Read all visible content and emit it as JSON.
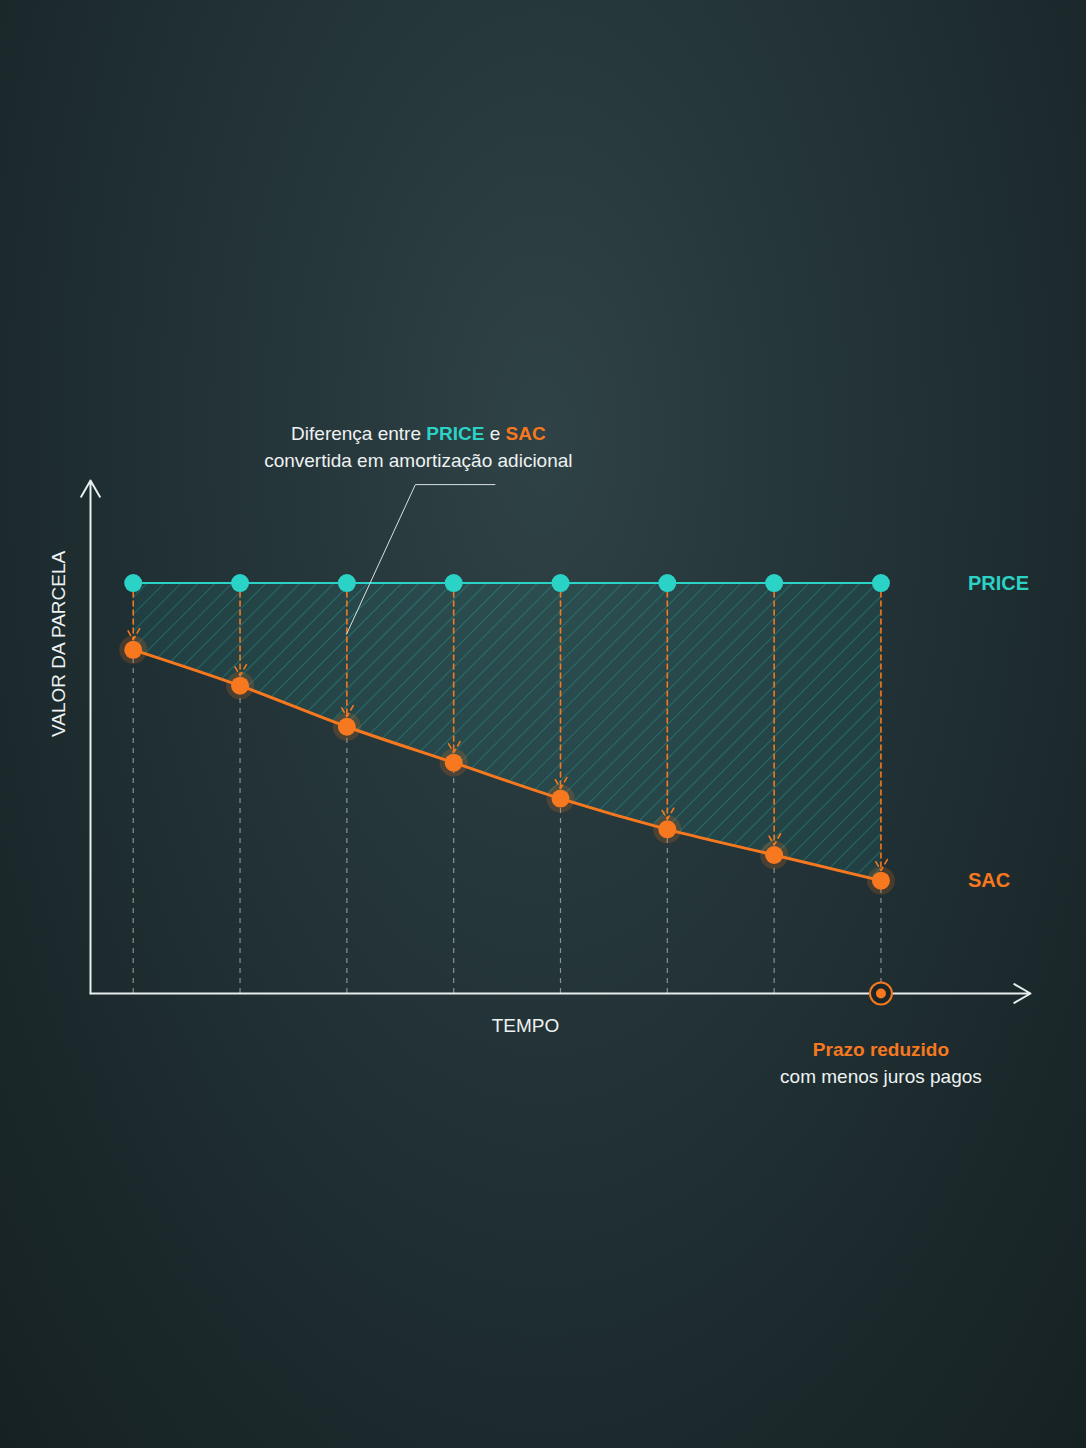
{
  "chart_data": {
    "type": "line",
    "x": [
      1,
      2,
      3,
      4,
      5,
      6,
      7,
      8
    ],
    "series": [
      {
        "name": "PRICE",
        "color": "#2bd3c6",
        "marker": "circle",
        "values": [
          80,
          80,
          80,
          80,
          80,
          80,
          80,
          80
        ]
      },
      {
        "name": "SAC",
        "color": "#f7781e",
        "marker": "circle",
        "values": [
          67,
          60,
          52,
          45,
          38,
          32,
          27,
          22
        ]
      }
    ],
    "xlabel": "TEMPO",
    "ylabel": "VALOR DA PARCELA",
    "xlim": [
      0.6,
      9.4
    ],
    "ylim": [
      0,
      100
    ],
    "xticks": [],
    "yticks": [],
    "tick_labels": false,
    "annotations": [
      {
        "lines": [
          "Diferença entre PRICE e SAC",
          "convertida em amortização adicional"
        ]
      },
      {
        "lines": [
          "Prazo reduzido",
          "com menos juros pagos"
        ]
      }
    ]
  }
}
